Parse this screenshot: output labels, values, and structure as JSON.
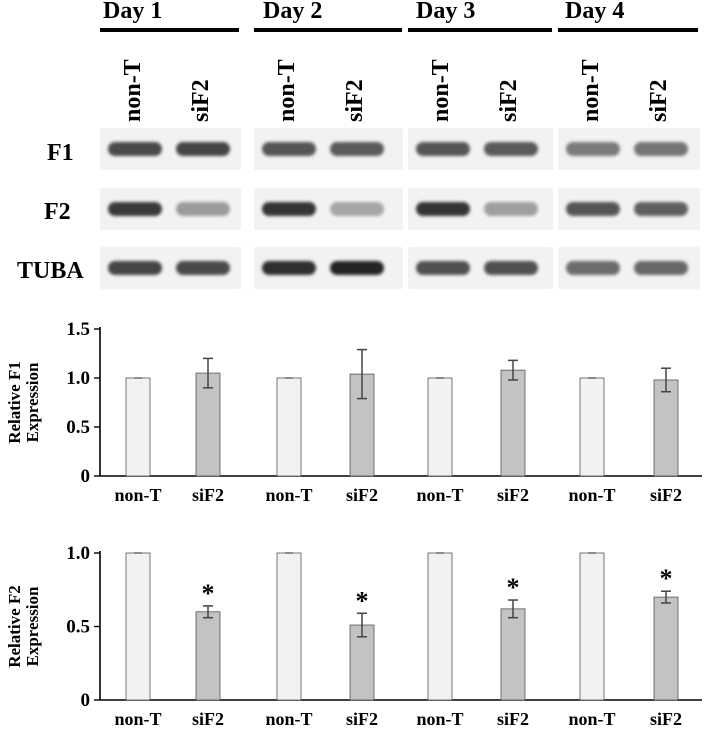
{
  "days": [
    "Day 1",
    "Day 2",
    "Day 3",
    "Day 4"
  ],
  "lanes": [
    "non-T",
    "siF2"
  ],
  "blot_rows": [
    {
      "label": "F1",
      "intensity": [
        [
          0.78,
          0.8
        ],
        [
          0.72,
          0.7
        ],
        [
          0.72,
          0.7
        ],
        [
          0.55,
          0.58
        ]
      ]
    },
    {
      "label": "F2",
      "intensity": [
        [
          0.85,
          0.4
        ],
        [
          0.88,
          0.35
        ],
        [
          0.88,
          0.38
        ],
        [
          0.72,
          0.68
        ]
      ]
    },
    {
      "label": "TUBA",
      "intensity": [
        [
          0.8,
          0.78
        ],
        [
          0.9,
          0.95
        ],
        [
          0.75,
          0.75
        ],
        [
          0.62,
          0.64
        ]
      ]
    }
  ],
  "colors": {
    "control_bar": "#f2f2f2",
    "treated_bar": "#c3c3c3",
    "axis": "#000000",
    "band": "#1a1a1a"
  },
  "chart_data": [
    {
      "type": "bar",
      "ylabel": [
        "Relative F1",
        "Expression"
      ],
      "ylim": [
        0,
        1.5
      ],
      "yticks": [
        "0",
        "0.5",
        "1.0",
        "1.5"
      ],
      "categories": [
        "non-T",
        "siF2",
        "non-T",
        "siF2",
        "non-T",
        "siF2",
        "non-T",
        "siF2"
      ],
      "values": [
        1.0,
        1.05,
        1.0,
        1.04,
        1.0,
        1.08,
        1.0,
        0.98
      ],
      "errors": [
        0,
        0.15,
        0,
        0.25,
        0,
        0.1,
        0,
        0.12
      ],
      "significant": [
        false,
        false,
        false,
        false,
        false,
        false,
        false,
        false
      ]
    },
    {
      "type": "bar",
      "ylabel": [
        "Relative F2",
        "Expression"
      ],
      "ylim": [
        0,
        1.0
      ],
      "yticks": [
        "0",
        "0.5",
        "1.0"
      ],
      "categories": [
        "non-T",
        "siF2",
        "non-T",
        "siF2",
        "non-T",
        "siF2",
        "non-T",
        "siF2"
      ],
      "values": [
        1.0,
        0.6,
        1.0,
        0.51,
        1.0,
        0.62,
        1.0,
        0.7
      ],
      "errors": [
        0,
        0.04,
        0,
        0.08,
        0,
        0.06,
        0,
        0.04
      ],
      "significant": [
        false,
        true,
        false,
        true,
        false,
        true,
        false,
        true
      ],
      "sig_marker": "*"
    }
  ]
}
